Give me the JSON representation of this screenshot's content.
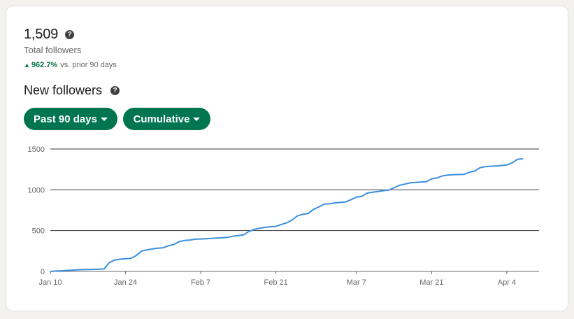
{
  "summary": {
    "total_value": "1,509",
    "total_label": "Total followers",
    "delta_value": "962.7%",
    "delta_text": "vs. prior 90 days"
  },
  "section": {
    "title": "New followers"
  },
  "filters": {
    "range_label": "Past 90 days",
    "mode_label": "Cumulative"
  },
  "colors": {
    "accent": "#01754f",
    "positive": "#057642",
    "line": "#3b8fde"
  },
  "icons": {
    "help": "question-circle-icon",
    "caret": "caret-down-icon",
    "delta": "triangle-up-icon"
  },
  "chart_data": {
    "type": "line",
    "title": "",
    "xlabel": "",
    "ylabel": "",
    "ylim": [
      0,
      1500
    ],
    "y_ticks": [
      0,
      500,
      1000,
      1500
    ],
    "x_range": [
      "2024-01-10",
      "2024-04-10"
    ],
    "x_ticks": [
      {
        "date": "2024-01-10",
        "label": "Jan 10"
      },
      {
        "date": "2024-01-24",
        "label": "Jan 24"
      },
      {
        "date": "2024-02-07",
        "label": "Feb 7"
      },
      {
        "date": "2024-02-21",
        "label": "Feb 21"
      },
      {
        "date": "2024-03-07",
        "label": "Mar 7"
      },
      {
        "date": "2024-03-21",
        "label": "Mar 21"
      },
      {
        "date": "2024-04-04",
        "label": "Apr 4"
      }
    ],
    "grid": "horizontal",
    "series": [
      {
        "points": [
          [
            "2024-01-10",
            0
          ],
          [
            "2024-01-11",
            5
          ],
          [
            "2024-01-12",
            8
          ],
          [
            "2024-01-13",
            12
          ],
          [
            "2024-01-14",
            15
          ],
          [
            "2024-01-15",
            20
          ],
          [
            "2024-01-16",
            22
          ],
          [
            "2024-01-17",
            24
          ],
          [
            "2024-01-18",
            25
          ],
          [
            "2024-01-19",
            28
          ],
          [
            "2024-01-20",
            30
          ],
          [
            "2024-01-21",
            110
          ],
          [
            "2024-01-22",
            140
          ],
          [
            "2024-01-23",
            150
          ],
          [
            "2024-01-24",
            155
          ],
          [
            "2024-01-25",
            160
          ],
          [
            "2024-01-26",
            195
          ],
          [
            "2024-01-27",
            250
          ],
          [
            "2024-01-28",
            265
          ],
          [
            "2024-01-29",
            275
          ],
          [
            "2024-01-30",
            285
          ],
          [
            "2024-01-31",
            290
          ],
          [
            "2024-02-01",
            315
          ],
          [
            "2024-02-02",
            330
          ],
          [
            "2024-02-03",
            365
          ],
          [
            "2024-02-04",
            380
          ],
          [
            "2024-02-05",
            385
          ],
          [
            "2024-02-06",
            395
          ],
          [
            "2024-02-07",
            398
          ],
          [
            "2024-02-08",
            400
          ],
          [
            "2024-02-09",
            405
          ],
          [
            "2024-02-10",
            410
          ],
          [
            "2024-02-11",
            412
          ],
          [
            "2024-02-12",
            418
          ],
          [
            "2024-02-13",
            430
          ],
          [
            "2024-02-14",
            440
          ],
          [
            "2024-02-15",
            448
          ],
          [
            "2024-02-16",
            490
          ],
          [
            "2024-02-17",
            515
          ],
          [
            "2024-02-18",
            530
          ],
          [
            "2024-02-19",
            540
          ],
          [
            "2024-02-20",
            548
          ],
          [
            "2024-02-21",
            552
          ],
          [
            "2024-02-22",
            575
          ],
          [
            "2024-02-23",
            595
          ],
          [
            "2024-02-24",
            630
          ],
          [
            "2024-02-25",
            680
          ],
          [
            "2024-02-26",
            700
          ],
          [
            "2024-02-27",
            710
          ],
          [
            "2024-02-28",
            760
          ],
          [
            "2024-02-29",
            790
          ],
          [
            "2024-03-01",
            825
          ],
          [
            "2024-03-02",
            830
          ],
          [
            "2024-03-03",
            840
          ],
          [
            "2024-03-04",
            845
          ],
          [
            "2024-03-05",
            852
          ],
          [
            "2024-03-06",
            880
          ],
          [
            "2024-03-07",
            910
          ],
          [
            "2024-03-08",
            920
          ],
          [
            "2024-03-09",
            960
          ],
          [
            "2024-03-10",
            970
          ],
          [
            "2024-03-11",
            980
          ],
          [
            "2024-03-12",
            990
          ],
          [
            "2024-03-13",
            995
          ],
          [
            "2024-03-14",
            1025
          ],
          [
            "2024-03-15",
            1055
          ],
          [
            "2024-03-16",
            1070
          ],
          [
            "2024-03-17",
            1085
          ],
          [
            "2024-03-18",
            1090
          ],
          [
            "2024-03-19",
            1095
          ],
          [
            "2024-03-20",
            1100
          ],
          [
            "2024-03-21",
            1135
          ],
          [
            "2024-03-22",
            1145
          ],
          [
            "2024-03-23",
            1170
          ],
          [
            "2024-03-24",
            1180
          ],
          [
            "2024-03-25",
            1185
          ],
          [
            "2024-03-26",
            1187
          ],
          [
            "2024-03-27",
            1190
          ],
          [
            "2024-03-28",
            1215
          ],
          [
            "2024-03-29",
            1230
          ],
          [
            "2024-03-30",
            1270
          ],
          [
            "2024-03-31",
            1285
          ],
          [
            "2024-04-01",
            1288
          ],
          [
            "2024-04-02",
            1292
          ],
          [
            "2024-04-03",
            1298
          ],
          [
            "2024-04-04",
            1305
          ],
          [
            "2024-04-05",
            1330
          ],
          [
            "2024-04-06",
            1375
          ],
          [
            "2024-04-07",
            1380
          ]
        ]
      }
    ]
  }
}
